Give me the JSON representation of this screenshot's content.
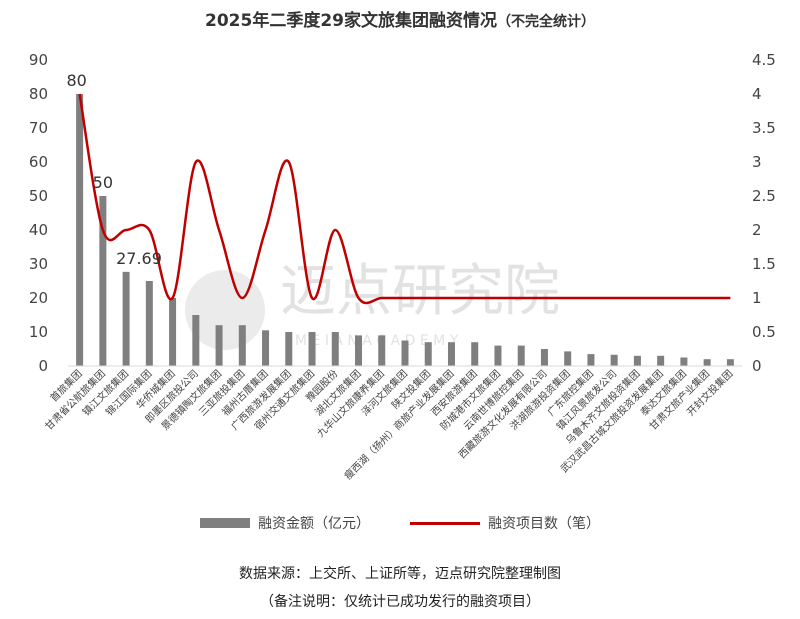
{
  "title_main": "2025年二季度29家文旅集团融资情况",
  "title_sub": "（不完全统计）",
  "legend": {
    "bar_label": "融资金额（亿元）",
    "line_label": "融资项目数（笔）"
  },
  "source": "数据来源：上交所、上证所等，迈点研究院整理制图",
  "note": "（备注说明：仅统计已成功发行的融资项目）",
  "watermark": {
    "text": "迈点研究院",
    "latin": "M E I A N   A C A D E M Y"
  },
  "colors": {
    "bar": "#7f7f7f",
    "line": "#c00000",
    "axis": "#d9d9d9",
    "text": "#444444"
  },
  "chart_data": {
    "type": "bar",
    "categories": [
      "首旅集团",
      "甘肃省公航旅集团",
      "镇江文旅集团",
      "锦江国际集团",
      "华侨城集团",
      "即墨区旅投公司",
      "景德镇陶文旅集团",
      "三亚旅投集团",
      "福州古厝集团",
      "广西旅游发展集团",
      "宿州交通文旅集团",
      "豫园股份",
      "湖北文旅集团",
      "九华山文旅康养集团",
      "泽河文旅集团",
      "陕文投集团",
      "瘦西湖（扬州）商旅产业发展集团",
      "西安旅游集团",
      "防城港市文旅集团",
      "云南世博旅控集团",
      "西藏旅游文化发展有限公司",
      "洪湖旅游投资集团",
      "广东旅控集团",
      "镇江风景旅发公司",
      "乌鲁木齐文旅投资集团",
      "武汉武昌古城文旅投资发展集团",
      "泰达文旅集团",
      "甘肃文旅产业集团",
      "开封文投集团"
    ],
    "series": [
      {
        "name": "融资金额（亿元）",
        "type": "bar",
        "axis": "left",
        "values": [
          80,
          50,
          27.69,
          25,
          20,
          15,
          12,
          12,
          10.5,
          10,
          10,
          10,
          9,
          9,
          7.5,
          7,
          7,
          7,
          6,
          6,
          5,
          4.3,
          3.5,
          3.3,
          3,
          3,
          2.5,
          2,
          2
        ]
      },
      {
        "name": "融资项目数（笔）",
        "type": "line",
        "axis": "right",
        "values": [
          4,
          2,
          2,
          2,
          1,
          3,
          2,
          1,
          2,
          3,
          1,
          2,
          1,
          1,
          1,
          1,
          1,
          1,
          1,
          1,
          1,
          1,
          1,
          1,
          1,
          1,
          1,
          1,
          1
        ]
      }
    ],
    "data_labels": [
      {
        "index": 0,
        "text": "80"
      },
      {
        "index": 1,
        "text": "50"
      },
      {
        "index": 2,
        "text": "27.69"
      }
    ],
    "y_left": {
      "min": 0,
      "max": 90,
      "ticks": [
        "0",
        "10",
        "20",
        "30",
        "40",
        "50",
        "60",
        "70",
        "80",
        "90"
      ]
    },
    "y_right": {
      "min": 0,
      "max": 4.5,
      "ticks": [
        "0",
        "0.5",
        "1",
        "1.5",
        "2",
        "2.5",
        "3",
        "3.5",
        "4",
        "4.5"
      ]
    },
    "grid": false,
    "legend_position": "bottom"
  }
}
